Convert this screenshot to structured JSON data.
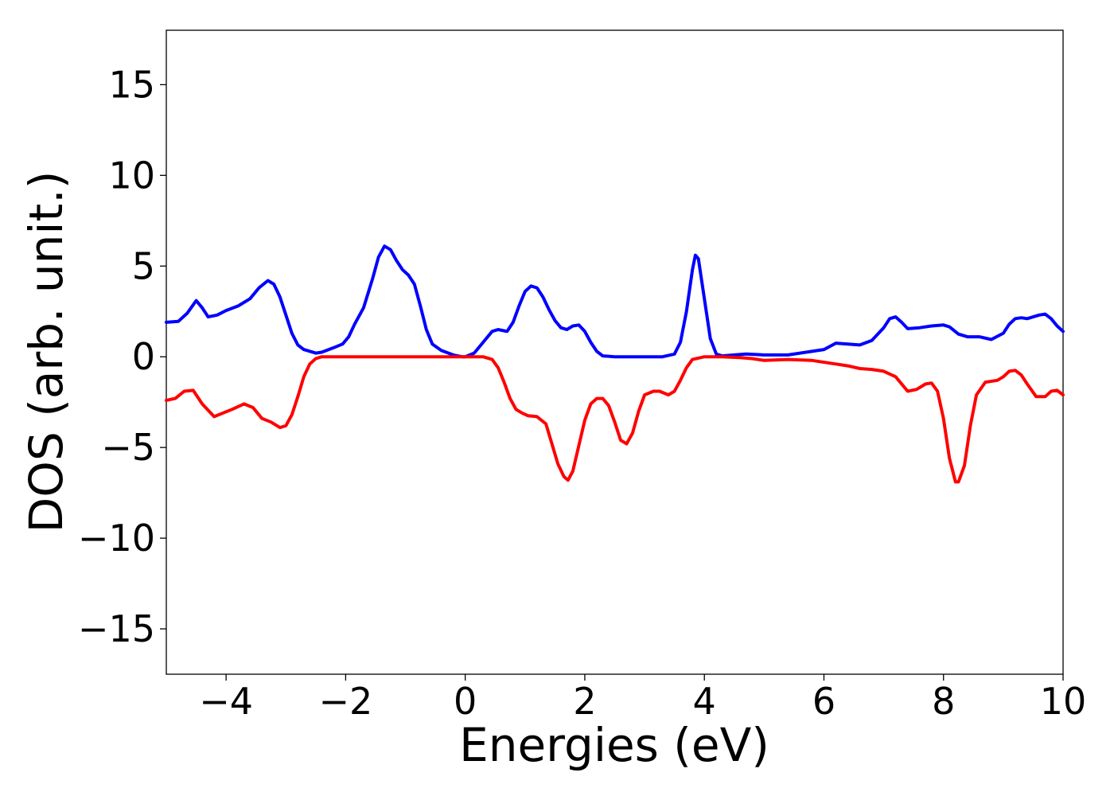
{
  "chart_data": {
    "type": "line",
    "title": "",
    "xlabel": "Energies (eV)",
    "ylabel": "DOS (arb. unit.)",
    "xlim": [
      -5,
      10
    ],
    "ylim": [
      -17.5,
      18
    ],
    "grid": false,
    "legend": "none",
    "x_ticks": [
      -4,
      -2,
      0,
      2,
      4,
      6,
      8,
      10
    ],
    "x_tick_labels": [
      "−4",
      "−2",
      "0",
      "2",
      "4",
      "6",
      "8",
      "10"
    ],
    "y_ticks": [
      15,
      10,
      5,
      0,
      -5,
      -10,
      -15
    ],
    "y_tick_labels": [
      "15",
      "10",
      "5",
      "0",
      "−5",
      "−10",
      "−15"
    ],
    "series": [
      {
        "color": "#0000ff",
        "x": [
          -5.0,
          -4.8,
          -4.65,
          -4.5,
          -4.4,
          -4.3,
          -4.15,
          -4.0,
          -3.8,
          -3.6,
          -3.45,
          -3.3,
          -3.2,
          -3.1,
          -3.0,
          -2.9,
          -2.8,
          -2.7,
          -2.5,
          -2.4,
          -2.2,
          -2.05,
          -1.95,
          -1.85,
          -1.7,
          -1.55,
          -1.45,
          -1.35,
          -1.25,
          -1.15,
          -1.05,
          -0.95,
          -0.85,
          -0.75,
          -0.65,
          -0.55,
          -0.4,
          -0.2,
          -0.05,
          0.0,
          0.15,
          0.3,
          0.45,
          0.55,
          0.7,
          0.8,
          0.9,
          1.0,
          1.1,
          1.2,
          1.3,
          1.4,
          1.5,
          1.6,
          1.7,
          1.8,
          1.9,
          2.0,
          2.1,
          2.2,
          2.3,
          2.5,
          2.7,
          2.9,
          3.1,
          3.3,
          3.5,
          3.6,
          3.7,
          3.8,
          3.85,
          3.9,
          4.0,
          4.1,
          4.2,
          4.3,
          4.5,
          4.7,
          5.0,
          5.4,
          5.8,
          6.0,
          6.2,
          6.4,
          6.6,
          6.8,
          7.0,
          7.1,
          7.2,
          7.3,
          7.4,
          7.6,
          7.8,
          8.0,
          8.1,
          8.25,
          8.4,
          8.6,
          8.8,
          9.0,
          9.1,
          9.2,
          9.3,
          9.4,
          9.5,
          9.6,
          9.7,
          9.8,
          9.9,
          10.0
        ],
        "y": [
          1.9,
          1.95,
          2.4,
          3.1,
          2.7,
          2.2,
          2.3,
          2.55,
          2.8,
          3.2,
          3.8,
          4.2,
          4.0,
          3.3,
          2.3,
          1.3,
          0.65,
          0.4,
          0.2,
          0.25,
          0.5,
          0.7,
          1.1,
          1.8,
          2.7,
          4.3,
          5.5,
          6.1,
          5.9,
          5.3,
          4.8,
          4.5,
          4.0,
          2.8,
          1.5,
          0.7,
          0.35,
          0.1,
          0.0,
          0.0,
          0.2,
          0.8,
          1.4,
          1.5,
          1.4,
          1.9,
          2.8,
          3.6,
          3.9,
          3.8,
          3.3,
          2.6,
          2.0,
          1.6,
          1.5,
          1.7,
          1.75,
          1.4,
          0.8,
          0.3,
          0.05,
          0.0,
          0.0,
          0.0,
          0.0,
          0.0,
          0.15,
          0.8,
          2.5,
          4.8,
          5.6,
          5.4,
          3.2,
          1.0,
          0.15,
          0.05,
          0.1,
          0.15,
          0.1,
          0.1,
          0.3,
          0.4,
          0.75,
          0.7,
          0.65,
          0.9,
          1.6,
          2.1,
          2.2,
          1.9,
          1.55,
          1.6,
          1.7,
          1.75,
          1.65,
          1.25,
          1.1,
          1.1,
          0.95,
          1.3,
          1.8,
          2.1,
          2.15,
          2.1,
          2.2,
          2.3,
          2.35,
          2.1,
          1.7,
          1.4
        ]
      },
      {
        "color": "#ff0000",
        "x": [
          -5.0,
          -4.85,
          -4.7,
          -4.55,
          -4.4,
          -4.2,
          -4.05,
          -3.9,
          -3.7,
          -3.55,
          -3.4,
          -3.25,
          -3.1,
          -3.0,
          -2.9,
          -2.8,
          -2.7,
          -2.6,
          -2.5,
          -2.4,
          -2.2,
          -1.5,
          -0.5,
          0.3,
          0.45,
          0.55,
          0.65,
          0.75,
          0.85,
          0.95,
          1.05,
          1.2,
          1.35,
          1.45,
          1.55,
          1.65,
          1.72,
          1.8,
          1.9,
          2.0,
          2.1,
          2.2,
          2.3,
          2.4,
          2.5,
          2.6,
          2.7,
          2.8,
          2.9,
          3.0,
          3.15,
          3.25,
          3.4,
          3.5,
          3.6,
          3.7,
          3.8,
          4.0,
          4.3,
          4.6,
          4.8,
          5.0,
          5.4,
          5.8,
          6.2,
          6.4,
          6.6,
          6.8,
          7.0,
          7.2,
          7.4,
          7.55,
          7.7,
          7.8,
          7.9,
          8.0,
          8.1,
          8.2,
          8.25,
          8.35,
          8.45,
          8.55,
          8.7,
          8.9,
          9.0,
          9.1,
          9.2,
          9.3,
          9.4,
          9.55,
          9.7,
          9.8,
          9.9,
          10.0
        ],
        "y": [
          -2.4,
          -2.3,
          -1.9,
          -1.85,
          -2.6,
          -3.3,
          -3.1,
          -2.9,
          -2.6,
          -2.8,
          -3.4,
          -3.6,
          -3.9,
          -3.8,
          -3.2,
          -2.2,
          -1.1,
          -0.4,
          -0.1,
          0.0,
          0.0,
          0.0,
          0.0,
          0.0,
          -0.15,
          -0.6,
          -1.4,
          -2.3,
          -2.9,
          -3.1,
          -3.25,
          -3.3,
          -3.7,
          -4.8,
          -5.9,
          -6.6,
          -6.8,
          -6.3,
          -4.9,
          -3.5,
          -2.6,
          -2.3,
          -2.3,
          -2.7,
          -3.6,
          -4.6,
          -4.8,
          -4.2,
          -3.0,
          -2.1,
          -1.9,
          -1.9,
          -2.1,
          -1.9,
          -1.3,
          -0.6,
          -0.15,
          0.0,
          0.0,
          -0.05,
          -0.1,
          -0.2,
          -0.15,
          -0.2,
          -0.4,
          -0.5,
          -0.65,
          -0.7,
          -0.8,
          -1.1,
          -1.9,
          -1.8,
          -1.5,
          -1.45,
          -1.9,
          -3.4,
          -5.6,
          -6.9,
          -6.9,
          -6.0,
          -3.8,
          -2.1,
          -1.4,
          -1.3,
          -1.1,
          -0.8,
          -0.75,
          -1.0,
          -1.5,
          -2.2,
          -2.2,
          -1.9,
          -1.85,
          -2.1
        ]
      }
    ]
  }
}
